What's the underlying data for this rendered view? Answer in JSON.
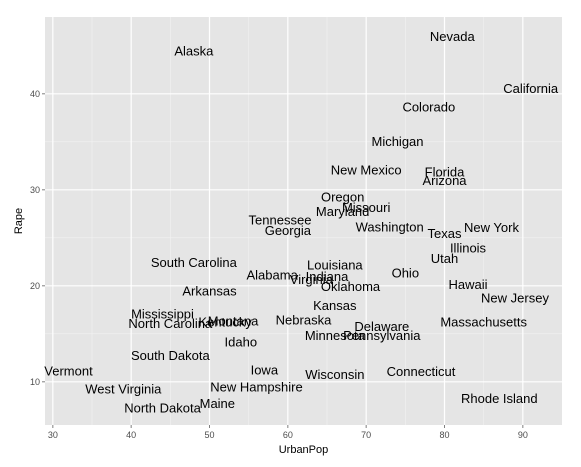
{
  "chart_data": {
    "type": "scatter",
    "title": "",
    "xlabel": "UrbanPop",
    "ylabel": "Rape",
    "xlim": [
      29,
      95
    ],
    "ylim": [
      5.5,
      48
    ],
    "xticks": [
      30,
      40,
      50,
      60,
      70,
      80,
      90
    ],
    "yticks": [
      10,
      20,
      30,
      40
    ],
    "grid": true,
    "colors": {
      "panel": "#e5e5e5",
      "grid_major": "#ffffff",
      "grid_minor": "#f2f2f2",
      "text": "#000000",
      "tick_text": "#4d4d4d"
    },
    "points": [
      {
        "label": "Alabama",
        "x": 58,
        "y": 21.2
      },
      {
        "label": "Alaska",
        "x": 48,
        "y": 44.5
      },
      {
        "label": "Arizona",
        "x": 80,
        "y": 31.0
      },
      {
        "label": "Arkansas",
        "x": 50,
        "y": 19.5
      },
      {
        "label": "California",
        "x": 91,
        "y": 40.6
      },
      {
        "label": "Colorado",
        "x": 78,
        "y": 38.7
      },
      {
        "label": "Connecticut",
        "x": 77,
        "y": 11.1
      },
      {
        "label": "Delaware",
        "x": 72,
        "y": 15.8
      },
      {
        "label": "Florida",
        "x": 80,
        "y": 31.9
      },
      {
        "label": "Georgia",
        "x": 60,
        "y": 25.8
      },
      {
        "label": "Hawaii",
        "x": 83,
        "y": 20.2
      },
      {
        "label": "Idaho",
        "x": 54,
        "y": 14.2
      },
      {
        "label": "Illinois",
        "x": 83,
        "y": 24.0
      },
      {
        "label": "Indiana",
        "x": 65,
        "y": 21.0
      },
      {
        "label": "Iowa",
        "x": 57,
        "y": 11.3
      },
      {
        "label": "Kansas",
        "x": 66,
        "y": 18.0
      },
      {
        "label": "Kentucky",
        "x": 52,
        "y": 16.3
      },
      {
        "label": "Louisiana",
        "x": 66,
        "y": 22.2
      },
      {
        "label": "Maine",
        "x": 51,
        "y": 7.8
      },
      {
        "label": "Maryland",
        "x": 67,
        "y": 27.8
      },
      {
        "label": "Massachusetts",
        "x": 85,
        "y": 16.3
      },
      {
        "label": "Michigan",
        "x": 74,
        "y": 35.1
      },
      {
        "label": "Minnesota",
        "x": 66,
        "y": 14.9
      },
      {
        "label": "Mississippi",
        "x": 44,
        "y": 17.1
      },
      {
        "label": "Missouri",
        "x": 70,
        "y": 28.2
      },
      {
        "label": "Montana",
        "x": 53,
        "y": 16.4
      },
      {
        "label": "Nebraska",
        "x": 62,
        "y": 16.5
      },
      {
        "label": "Nevada",
        "x": 81,
        "y": 46.0
      },
      {
        "label": "New Hampshire",
        "x": 56,
        "y": 9.5
      },
      {
        "label": "New Jersey",
        "x": 89,
        "y": 18.8
      },
      {
        "label": "New Mexico",
        "x": 70,
        "y": 32.1
      },
      {
        "label": "New York",
        "x": 86,
        "y": 26.1
      },
      {
        "label": "North Carolina",
        "x": 45,
        "y": 16.1
      },
      {
        "label": "North Dakota",
        "x": 44,
        "y": 7.3
      },
      {
        "label": "Ohio",
        "x": 75,
        "y": 21.4
      },
      {
        "label": "Oklahoma",
        "x": 68,
        "y": 20.0
      },
      {
        "label": "Oregon",
        "x": 67,
        "y": 29.3
      },
      {
        "label": "Pennsylvania",
        "x": 72,
        "y": 14.9
      },
      {
        "label": "Rhode Island",
        "x": 87,
        "y": 8.3
      },
      {
        "label": "South Carolina",
        "x": 48,
        "y": 22.5
      },
      {
        "label": "South Dakota",
        "x": 45,
        "y": 12.8
      },
      {
        "label": "Tennessee",
        "x": 59,
        "y": 26.9
      },
      {
        "label": "Texas",
        "x": 80,
        "y": 25.5
      },
      {
        "label": "Utah",
        "x": 80,
        "y": 22.9
      },
      {
        "label": "Vermont",
        "x": 32,
        "y": 11.2
      },
      {
        "label": "Virginia",
        "x": 63,
        "y": 20.7
      },
      {
        "label": "Washington",
        "x": 73,
        "y": 26.2
      },
      {
        "label": "West Virginia",
        "x": 39,
        "y": 9.3
      },
      {
        "label": "Wisconsin",
        "x": 66,
        "y": 10.8
      }
    ]
  }
}
